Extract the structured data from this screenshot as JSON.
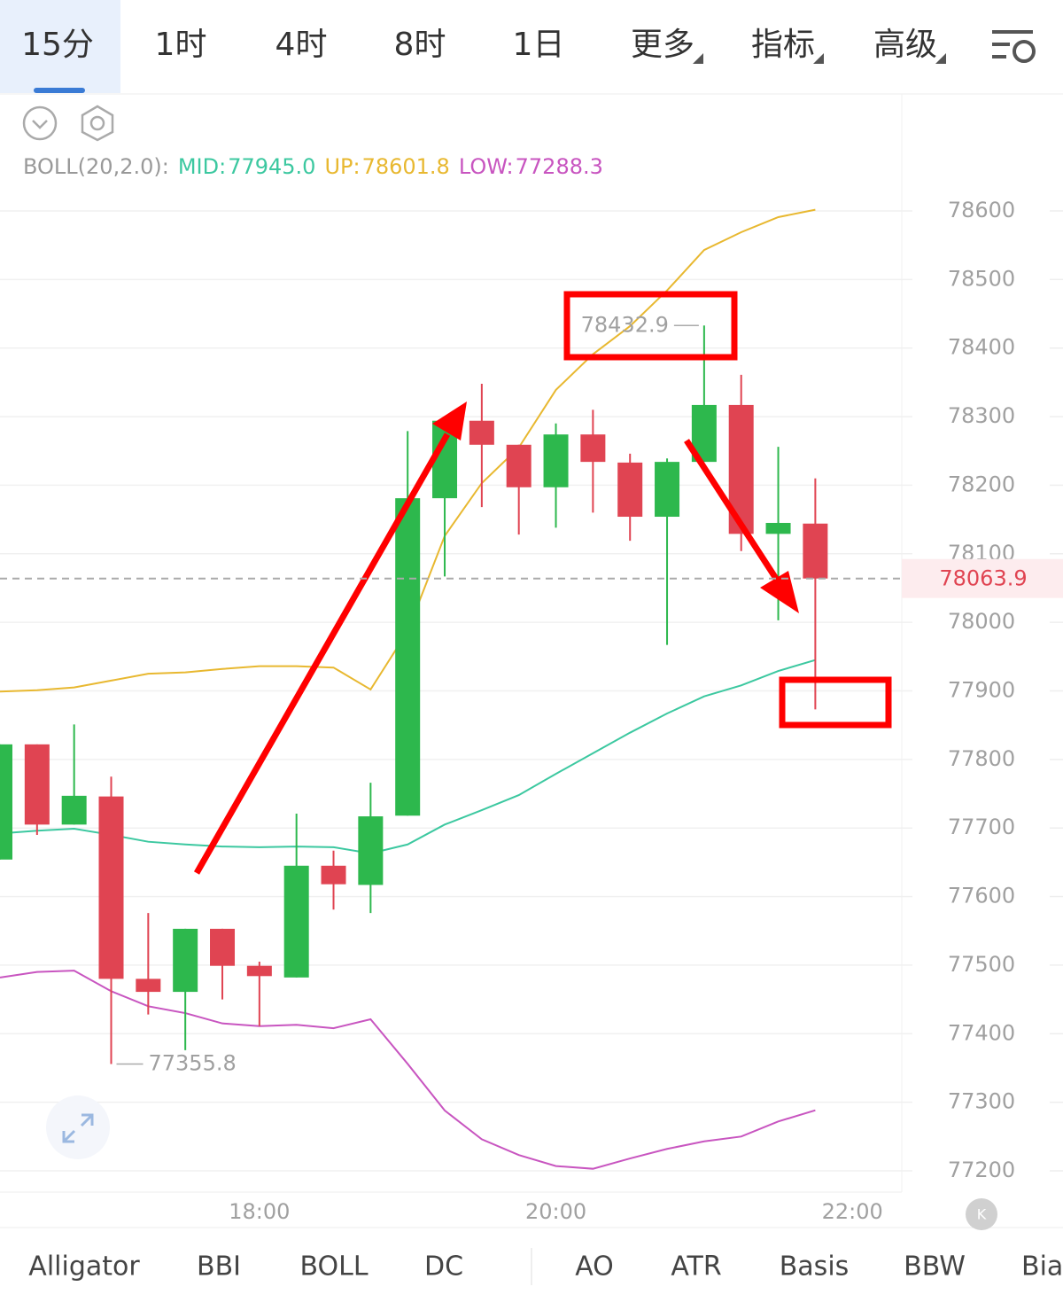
{
  "tabs": [
    "15分",
    "1时",
    "4时",
    "8时",
    "1日",
    "更多",
    "指标",
    "高级"
  ],
  "bottom_tabs": [
    "Alligator",
    "BBI",
    "BOLL",
    "DC",
    "AO",
    "ATR",
    "Basis",
    "BBW",
    "Bias"
  ],
  "chart_data": {
    "type": "candlestick",
    "indicator": "BOLL(20,2.0):",
    "x": [
      975,
      990,
      1005,
      1020,
      1035,
      1050,
      1065,
      1080,
      1095,
      1110,
      1125,
      1140,
      1155,
      1170,
      1185,
      1200,
      1215,
      1230,
      1245,
      1260,
      1275,
      1290,
      1305
    ],
    "open": [
      77654,
      77822,
      77705,
      77746,
      77480,
      77461,
      77553,
      77499,
      77482,
      77645,
      77617,
      77718,
      78181,
      78294,
      78259,
      78197,
      78274,
      78233,
      78154,
      78234,
      78317,
      78129,
      78144
    ],
    "high": [
      77822,
      77822,
      77851,
      77775,
      77576,
      77553,
      77553,
      77505,
      77721,
      77667,
      77766,
      78279,
      78294,
      78348,
      78259,
      78290,
      78310,
      78246,
      78239,
      78432.9,
      78361,
      78256,
      78210
    ],
    "low": [
      77654,
      77690,
      77705,
      77355.8,
      77428,
      77376,
      77450,
      77411,
      77482,
      77581,
      77576,
      77718,
      78067,
      78168,
      78128,
      78138,
      78160,
      78119,
      77967,
      78234,
      78104,
      78003,
      77873
    ],
    "close": [
      77822,
      77705,
      77747,
      77480,
      77461,
      77553,
      77499,
      77484,
      77645,
      77618,
      77717,
      78181,
      78294,
      78259,
      78197,
      78274,
      78234,
      78154,
      78234,
      78317,
      78129,
      78145,
      78063.9
    ],
    "up_color": "#2db84d",
    "down_color": "#e04452",
    "series": [
      {
        "name": "MID:",
        "last_label": "77945.0",
        "color": "#3cc8a0",
        "values": [
          77692,
          77696,
          77699,
          77690,
          77680,
          77676,
          77673,
          77672,
          77673,
          77672,
          77663,
          77676,
          77705,
          77726,
          77748,
          77779,
          77809,
          77839,
          77867,
          77892,
          77908,
          77929,
          77945
        ]
      },
      {
        "name": "UP:",
        "last_label": "78601.8",
        "color": "#e8b830",
        "values": [
          77899,
          77901,
          77905,
          77915,
          77925,
          77927,
          77932,
          77936,
          77936,
          77934,
          77902,
          77987,
          78126,
          78203,
          78255,
          78339,
          78391,
          78432,
          78484,
          78543,
          78569,
          78591,
          78601.8
        ]
      },
      {
        "name": "LOW:",
        "last_label": "77288.3",
        "color": "#c855c0",
        "values": [
          77482,
          77490,
          77492,
          77462,
          77440,
          77430,
          77415,
          77411,
          77413,
          77408,
          77421,
          77356,
          77288,
          77246,
          77223,
          77207,
          77203,
          77218,
          77232,
          77243,
          77250,
          77272,
          77288.3
        ]
      }
    ],
    "high_label": 78432.9,
    "low_label": 77355.8,
    "last_price": 78063.9,
    "xlim": [
      975,
      1340
    ],
    "ylim": [
      77200,
      78600
    ],
    "xticks": [
      {
        "value": 1080,
        "label": "18:00"
      },
      {
        "value": 1200,
        "label": "20:00"
      },
      {
        "value": 1320,
        "label": "22:00"
      }
    ],
    "yticks": [
      77200,
      77300,
      77400,
      77500,
      77600,
      77700,
      77800,
      77900,
      78000,
      78100,
      78200,
      78300,
      78400,
      78500,
      78600
    ],
    "grid": true
  }
}
